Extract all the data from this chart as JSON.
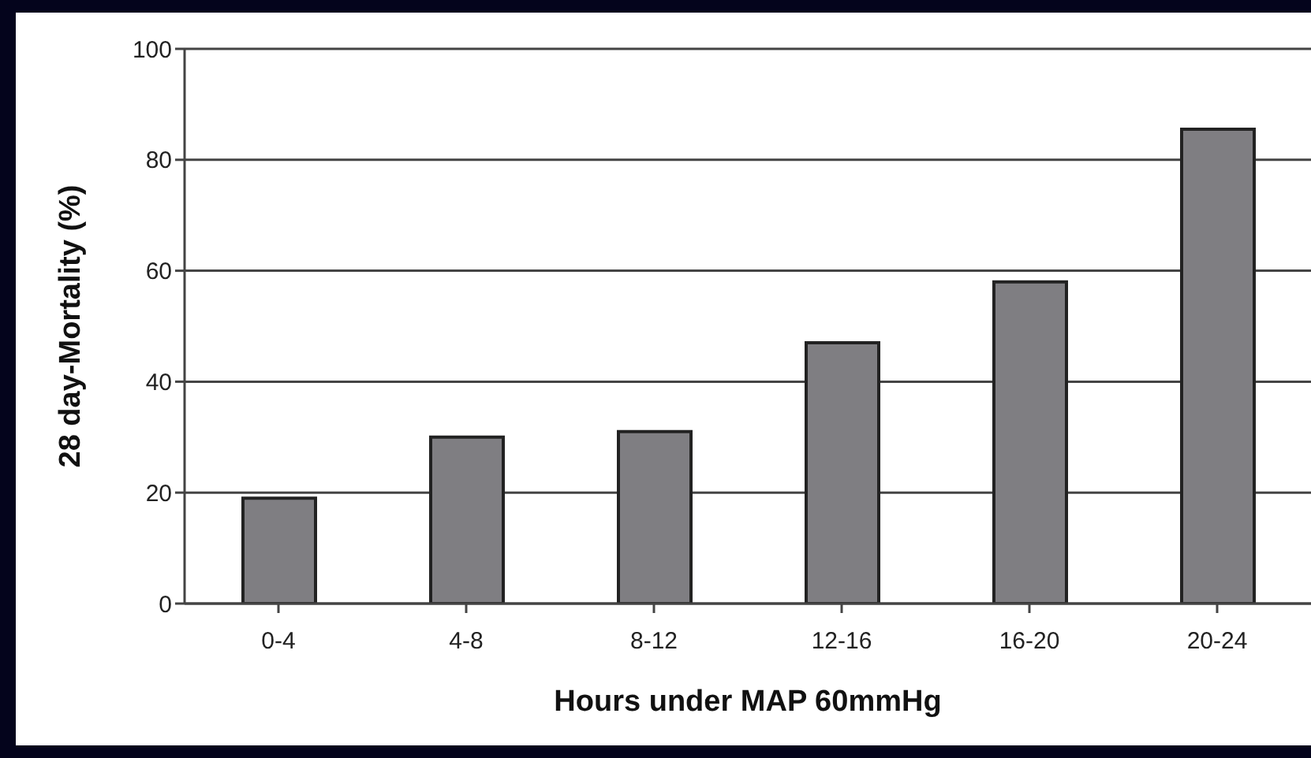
{
  "chart_data": {
    "type": "bar",
    "xlabel": "Hours under MAP 60mmHg",
    "ylabel": "28 day-Mortality (%)",
    "categories": [
      "0-4",
      "4-8",
      "8-12",
      "12-16",
      "16-20",
      "20-24"
    ],
    "values": [
      19,
      30,
      31,
      47,
      58,
      85.5
    ],
    "color": "#7f7e82",
    "ylim": [
      0,
      100
    ],
    "yticks": [
      0,
      20,
      40,
      60,
      80,
      100
    ],
    "grid": "y"
  }
}
